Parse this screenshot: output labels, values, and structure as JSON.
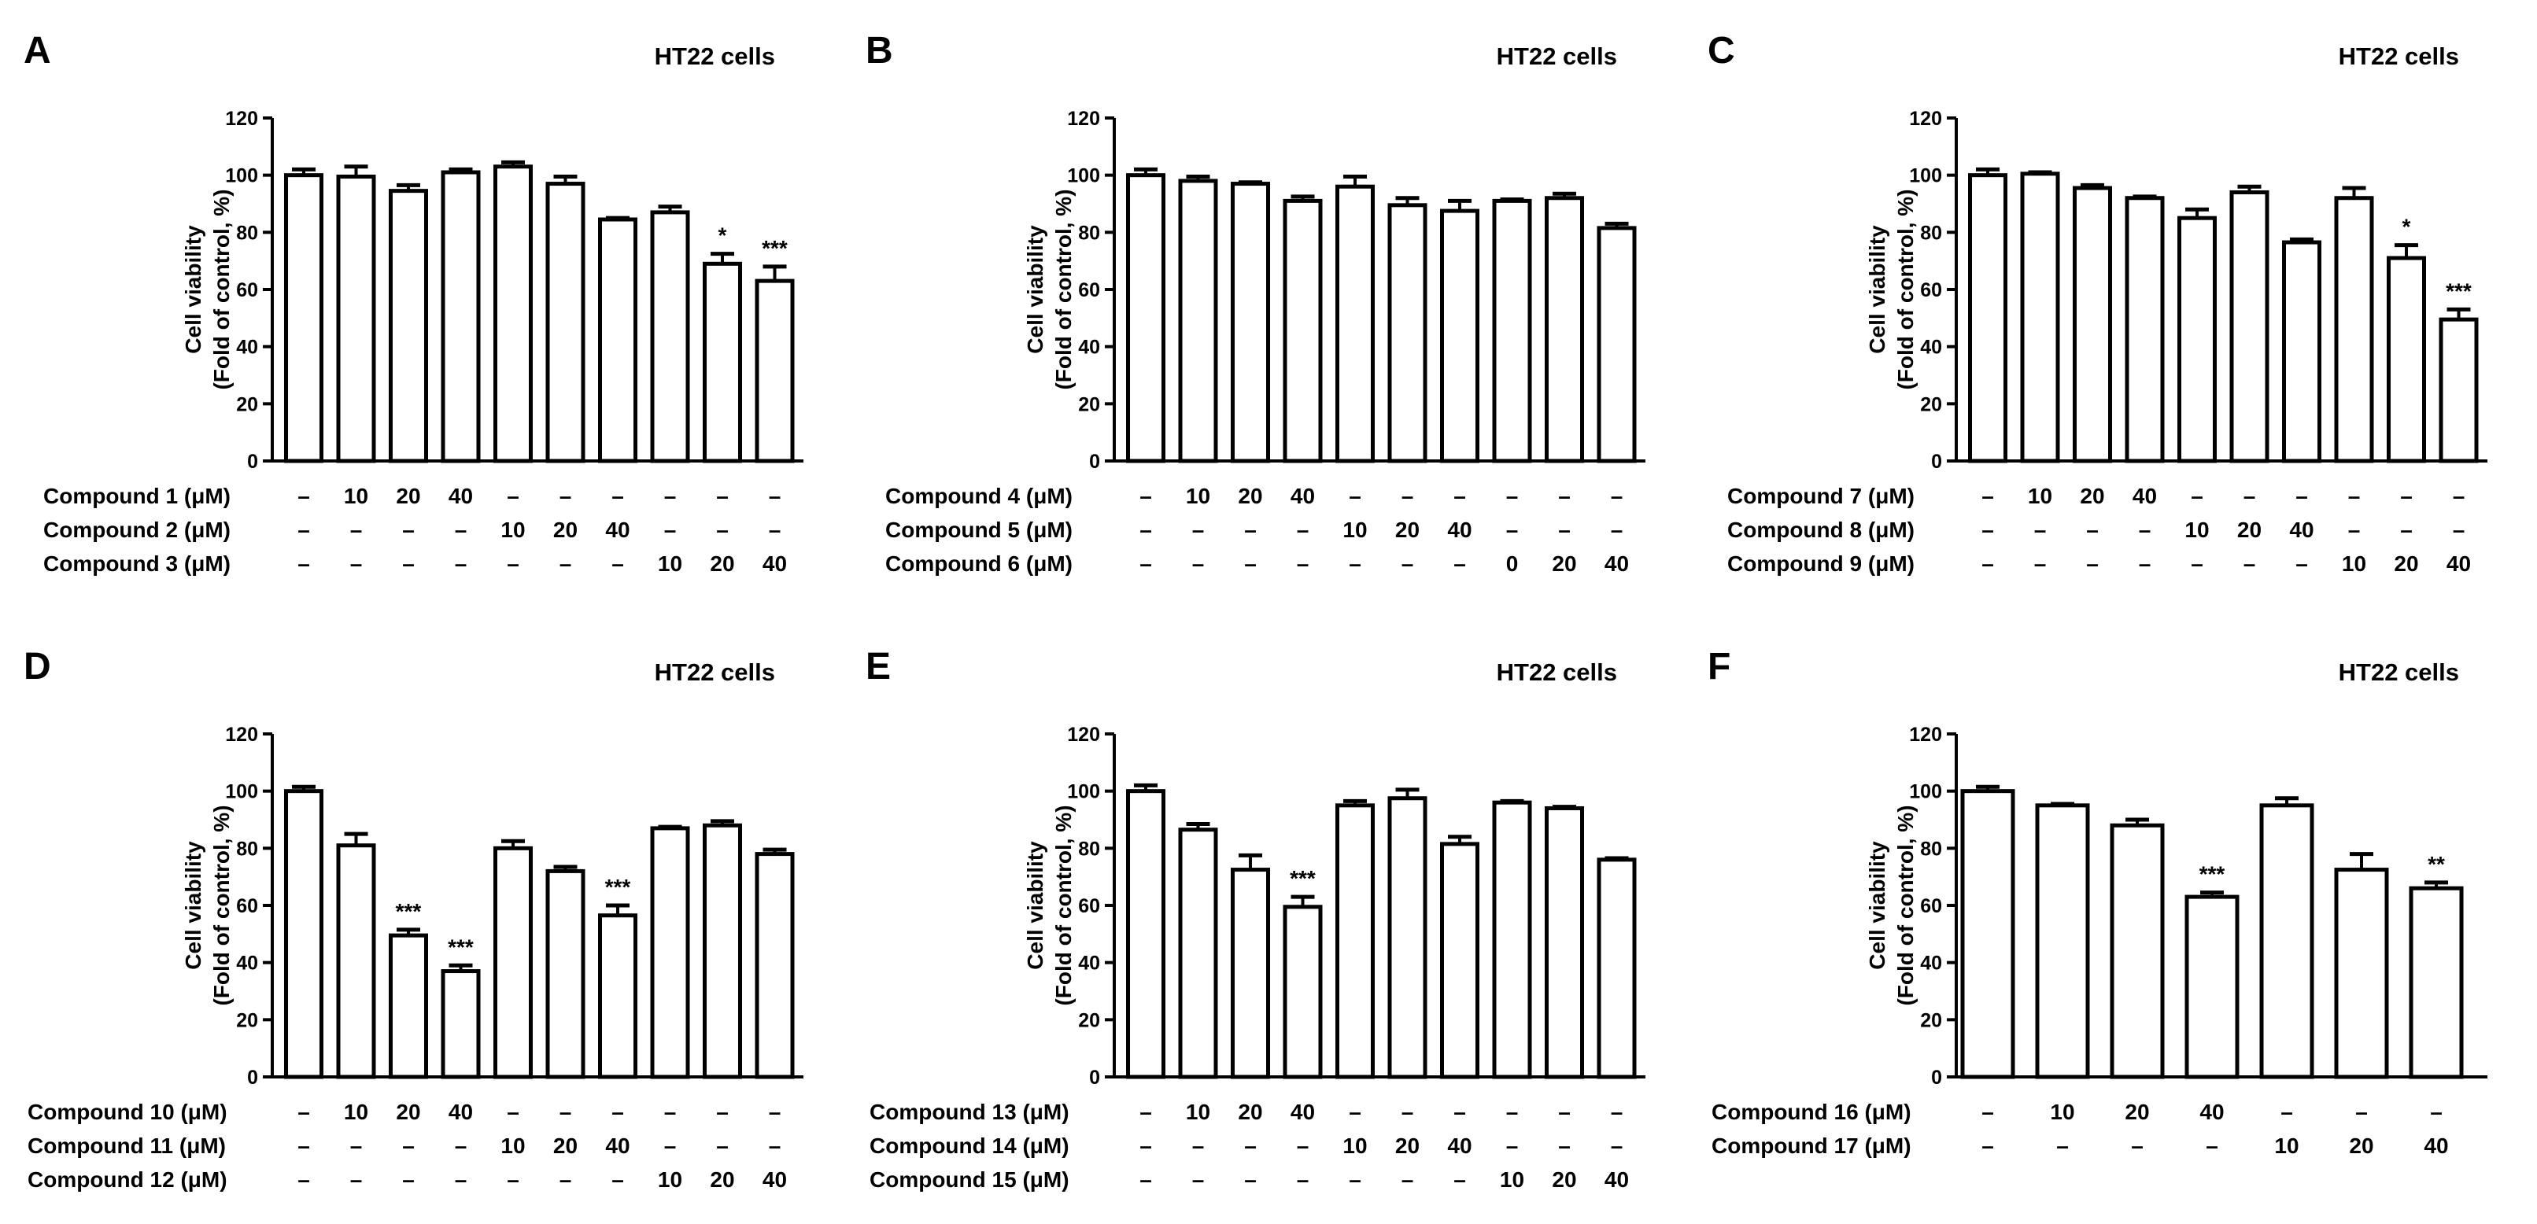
{
  "chart_data": [
    {
      "panel": "A",
      "type": "bar",
      "title": "HT22 cells",
      "ylabel": [
        "Cell viability",
        "(Fold of control, %)"
      ],
      "ylim": [
        0,
        120
      ],
      "yticks": [
        0,
        20,
        40,
        60,
        80,
        100,
        120
      ],
      "values": [
        100,
        99.5,
        94.5,
        101,
        103,
        97,
        84.5,
        87,
        69,
        63
      ],
      "errors": [
        2,
        3.5,
        2,
        1,
        1.5,
        2.5,
        0.5,
        2,
        3.5,
        5
      ],
      "significance": [
        "",
        "",
        "",
        "",
        "",
        "",
        "",
        "",
        "*",
        "***"
      ],
      "rows": [
        {
          "label": "Compound 1 (μM)",
          "values": [
            "–",
            "10",
            "20",
            "40",
            "–",
            "–",
            "–",
            "–",
            "–",
            "–"
          ]
        },
        {
          "label": "Compound 2 (μM)",
          "values": [
            "–",
            "–",
            "–",
            "–",
            "10",
            "20",
            "40",
            "–",
            "–",
            "–"
          ]
        },
        {
          "label": "Compound 3 (μM)",
          "values": [
            "–",
            "–",
            "–",
            "–",
            "–",
            "–",
            "–",
            "10",
            "20",
            "40"
          ]
        }
      ]
    },
    {
      "panel": "B",
      "type": "bar",
      "title": "HT22 cells",
      "ylabel": [
        "Cell viability",
        "(Fold of control, %)"
      ],
      "ylim": [
        0,
        120
      ],
      "yticks": [
        0,
        20,
        40,
        60,
        80,
        100,
        120
      ],
      "values": [
        100,
        98,
        97,
        91,
        96,
        89.5,
        87.5,
        91,
        92,
        81.5
      ],
      "errors": [
        2,
        1.5,
        0.5,
        1.5,
        3.5,
        2.5,
        3.5,
        0.5,
        1.5,
        1.5
      ],
      "significance": [
        "",
        "",
        "",
        "",
        "",
        "",
        "",
        "",
        "",
        ""
      ],
      "rows": [
        {
          "label": "Compound 4 (μM)",
          "values": [
            "–",
            "10",
            "20",
            "40",
            "–",
            "–",
            "–",
            "–",
            "–",
            "–"
          ]
        },
        {
          "label": "Compound 5 (μM)",
          "values": [
            "–",
            "–",
            "–",
            "–",
            "10",
            "20",
            "40",
            "–",
            "–",
            "–"
          ]
        },
        {
          "label": "Compound 6 (μM)",
          "values": [
            "–",
            "–",
            "–",
            "–",
            "–",
            "–",
            "–",
            "0",
            "20",
            "40"
          ]
        }
      ]
    },
    {
      "panel": "C",
      "type": "bar",
      "title": "HT22 cells",
      "ylabel": [
        "Cell viability",
        "(Fold of control, %)"
      ],
      "ylim": [
        0,
        120
      ],
      "yticks": [
        0,
        20,
        40,
        60,
        80,
        100,
        120
      ],
      "values": [
        100,
        100.5,
        95.5,
        92,
        85,
        94,
        76.5,
        92,
        71,
        49.5
      ],
      "errors": [
        2,
        0.5,
        1,
        0.5,
        3,
        2,
        1,
        3.5,
        4.5,
        3.5
      ],
      "significance": [
        "",
        "",
        "",
        "",
        "",
        "",
        "",
        "",
        "*",
        "***"
      ],
      "rows": [
        {
          "label": "Compound 7 (μM)",
          "values": [
            "–",
            "10",
            "20",
            "40",
            "–",
            "–",
            "–",
            "–",
            "–",
            "–"
          ]
        },
        {
          "label": "Compound 8 (μM)",
          "values": [
            "–",
            "–",
            "–",
            "–",
            "10",
            "20",
            "40",
            "–",
            "–",
            "–"
          ]
        },
        {
          "label": "Compound 9 (μM)",
          "values": [
            "–",
            "–",
            "–",
            "–",
            "–",
            "–",
            "–",
            "10",
            "20",
            "40"
          ]
        }
      ]
    },
    {
      "panel": "D",
      "type": "bar",
      "title": "HT22 cells",
      "ylabel": [
        "Cell viability",
        "(Fold of control, %)"
      ],
      "ylim": [
        0,
        120
      ],
      "yticks": [
        0,
        20,
        40,
        60,
        80,
        100,
        120
      ],
      "values": [
        100,
        81,
        49.5,
        37,
        80,
        72,
        56.5,
        87,
        88,
        78
      ],
      "errors": [
        1.5,
        4,
        2,
        2,
        2.5,
        1.5,
        3.5,
        0.5,
        1.5,
        1.5
      ],
      "significance": [
        "",
        "",
        "***",
        "***",
        "",
        "",
        "***",
        "",
        "",
        ""
      ],
      "rows": [
        {
          "label": "Compound 10 (μM)",
          "values": [
            "–",
            "10",
            "20",
            "40",
            "–",
            "–",
            "–",
            "–",
            "–",
            "–"
          ]
        },
        {
          "label": "Compound 11 (μM)",
          "values": [
            "–",
            "–",
            "–",
            "–",
            "10",
            "20",
            "40",
            "–",
            "–",
            "–"
          ]
        },
        {
          "label": "Compound 12 (μM)",
          "values": [
            "–",
            "–",
            "–",
            "–",
            "–",
            "–",
            "–",
            "10",
            "20",
            "40"
          ]
        }
      ]
    },
    {
      "panel": "E",
      "type": "bar",
      "title": "HT22 cells",
      "ylabel": [
        "Cell viability",
        "(Fold of control, %)"
      ],
      "ylim": [
        0,
        120
      ],
      "yticks": [
        0,
        20,
        40,
        60,
        80,
        100,
        120
      ],
      "values": [
        100,
        86.5,
        72.5,
        59.5,
        95,
        97.5,
        81.5,
        96,
        94,
        76
      ],
      "errors": [
        2,
        2,
        5,
        3.5,
        1.5,
        3,
        2.5,
        0.5,
        0.5,
        0.5
      ],
      "significance": [
        "",
        "",
        "",
        "***",
        "",
        "",
        "",
        "",
        "",
        ""
      ],
      "rows": [
        {
          "label": "Compound 13 (μM)",
          "values": [
            "–",
            "10",
            "20",
            "40",
            "–",
            "–",
            "–",
            "–",
            "–",
            "–"
          ]
        },
        {
          "label": "Compound 14 (μM)",
          "values": [
            "–",
            "–",
            "–",
            "–",
            "10",
            "20",
            "40",
            "–",
            "–",
            "–"
          ]
        },
        {
          "label": "Compound 15 (μM)",
          "values": [
            "–",
            "–",
            "–",
            "–",
            "–",
            "–",
            "–",
            "10",
            "20",
            "40"
          ]
        }
      ]
    },
    {
      "panel": "F",
      "type": "bar",
      "title": "HT22 cells",
      "ylabel": [
        "Cell viability",
        "(Fold of control, %)"
      ],
      "ylim": [
        0,
        120
      ],
      "yticks": [
        0,
        20,
        40,
        60,
        80,
        100,
        120
      ],
      "values": [
        100,
        95,
        88,
        63,
        95,
        72.5,
        66
      ],
      "errors": [
        1.5,
        0.5,
        2,
        1.5,
        2.5,
        5.5,
        2
      ],
      "significance": [
        "",
        "",
        "",
        "***",
        "",
        "",
        "**"
      ],
      "rows": [
        {
          "label": "Compound 16 (μM)",
          "values": [
            "–",
            "10",
            "20",
            "40",
            "–",
            "–",
            "–"
          ]
        },
        {
          "label": "Compound 17 (μM)",
          "values": [
            "–",
            "–",
            "–",
            "–",
            "10",
            "20",
            "40"
          ]
        }
      ]
    }
  ]
}
